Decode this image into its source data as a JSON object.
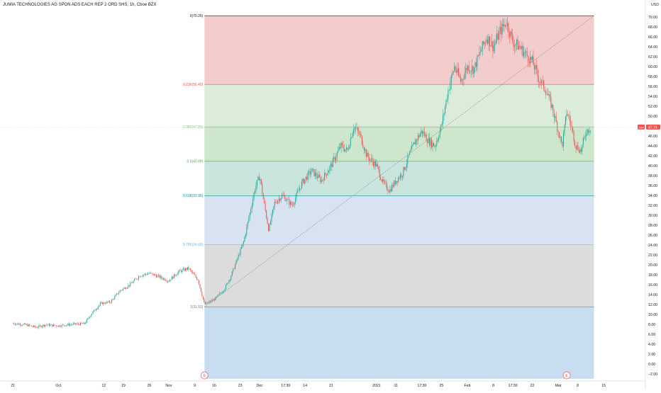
{
  "header": {
    "title": "JUMIA TECHNOLOGIES AG SPON ADS EACH REP 2 ORD SHS, 1h, Cboe BZX"
  },
  "colors": {
    "up": "#26a69a",
    "down": "#ef5350",
    "fib_0_0236": "#f2c7c7",
    "fib_0236_0382": "#d7ead6",
    "fib_0382_05": "#c8e3c6",
    "fib_05_0618": "#c3e2da",
    "fib_0618_0786": "#d3e0ee",
    "fib_0786_1": "#d8d8d8",
    "fib_below_1": "#c3d9ee",
    "last_price_tag": "#ef5350"
  },
  "chart_data": {
    "type": "candlestick",
    "symbol": "JUMIA TECHNOLOGIES AG SPON ADS EACH REP 2 ORD SHS",
    "interval": "1h",
    "exchange": "Cboe BZX",
    "currency": "USD",
    "ylim": [
      -3,
      72
    ],
    "y_ticks": [
      {
        "value": 70,
        "label": "70.00"
      },
      {
        "value": 68,
        "label": "68.00"
      },
      {
        "value": 66,
        "label": "66.00"
      },
      {
        "value": 64,
        "label": "64.00"
      },
      {
        "value": 62,
        "label": "62.00"
      },
      {
        "value": 60,
        "label": "60.00"
      },
      {
        "value": 58,
        "label": "58.00"
      },
      {
        "value": 56,
        "label": "56.00"
      },
      {
        "value": 54,
        "label": "54.00"
      },
      {
        "value": 52,
        "label": "52.00"
      },
      {
        "value": 50,
        "label": "50.00"
      },
      {
        "value": 48,
        "label": "48.00"
      },
      {
        "value": 46,
        "label": "46.00"
      },
      {
        "value": 44,
        "label": "44.00"
      },
      {
        "value": 42,
        "label": "42.00"
      },
      {
        "value": 40,
        "label": "40.00"
      },
      {
        "value": 38,
        "label": "38.00"
      },
      {
        "value": 36,
        "label": "36.00"
      },
      {
        "value": 34,
        "label": "34.00"
      },
      {
        "value": 32,
        "label": "32.00"
      },
      {
        "value": 30,
        "label": "30.00"
      },
      {
        "value": 28,
        "label": "28.00"
      },
      {
        "value": 26,
        "label": "26.00"
      },
      {
        "value": 24,
        "label": "24.00"
      },
      {
        "value": 22,
        "label": "22.00"
      },
      {
        "value": 20,
        "label": "20.00"
      },
      {
        "value": 18,
        "label": "18.00"
      },
      {
        "value": 16,
        "label": "16.00"
      },
      {
        "value": 14,
        "label": "14.00"
      },
      {
        "value": 12,
        "label": "12.00"
      },
      {
        "value": 10,
        "label": "10.00"
      },
      {
        "value": 8,
        "label": "8.00"
      },
      {
        "value": 6,
        "label": "6.00"
      },
      {
        "value": 4,
        "label": "4.00"
      },
      {
        "value": 2,
        "label": "2.00"
      },
      {
        "value": 0,
        "label": "0.00"
      },
      {
        "value": -2,
        "label": "−2.00"
      }
    ],
    "axis_top_labels": [
      "USD"
    ],
    "x_ticks": [
      {
        "value": 0,
        "label": "21"
      },
      {
        "value": 7,
        "label": "Oct"
      },
      {
        "value": 14,
        "label": "12"
      },
      {
        "value": 17,
        "label": "19"
      },
      {
        "value": 21,
        "label": "26"
      },
      {
        "value": 24,
        "label": "Nov"
      },
      {
        "value": 28,
        "label": "9"
      },
      {
        "value": 31,
        "label": "16"
      },
      {
        "value": 35,
        "label": "23"
      },
      {
        "value": 38,
        "label": "Dec"
      },
      {
        "value": 42,
        "label": "17:30"
      },
      {
        "value": 45,
        "label": "14"
      },
      {
        "value": 49,
        "label": "21"
      },
      {
        "value": 56,
        "label": "2021"
      },
      {
        "value": 59,
        "label": "11"
      },
      {
        "value": 63,
        "label": "17:30"
      },
      {
        "value": 66,
        "label": "25"
      },
      {
        "value": 70,
        "label": "Feb"
      },
      {
        "value": 74,
        "label": "8"
      },
      {
        "value": 77,
        "label": "17:30"
      },
      {
        "value": 80,
        "label": "22"
      },
      {
        "value": 84,
        "label": "Mar"
      },
      {
        "value": 87,
        "label": "8"
      },
      {
        "value": 91,
        "label": "15"
      }
    ],
    "xlim": [
      -2,
      96
    ],
    "fib_retracement": {
      "x_start": 29.5,
      "x_end": 89.5,
      "levels": [
        {
          "ratio": "0",
          "price": 70.26,
          "label": "0(70.26)",
          "color": "#131722"
        },
        {
          "ratio": "0.236",
          "price": 56.4,
          "label": "0.236(56.40)",
          "color": "#ef5350"
        },
        {
          "ratio": "0.382",
          "price": 47.83,
          "label": "0.382(47.83)",
          "color": "#81c784"
        },
        {
          "ratio": "0.5",
          "price": 40.89,
          "label": "0.5(40.89)",
          "color": "#4caf50"
        },
        {
          "ratio": "0.618",
          "price": 33.96,
          "label": "0.618(33.96)",
          "color": "#009688"
        },
        {
          "ratio": "0.786",
          "price": 24.09,
          "label": "0.786(24.09)",
          "color": "#64b5f6"
        },
        {
          "ratio": "1",
          "price": 11.52,
          "label": "1(11.52)",
          "color": "#787b86"
        }
      ],
      "trend_line": {
        "from": [
          29.5,
          11.52
        ],
        "to": [
          89.5,
          70.26
        ]
      }
    },
    "price_path": [
      [
        0,
        8.2
      ],
      [
        2,
        7.9
      ],
      [
        3.5,
        7.4
      ],
      [
        5,
        7.9
      ],
      [
        7,
        7.7
      ],
      [
        9,
        8.0
      ],
      [
        11,
        8.1
      ],
      [
        12,
        10.0
      ],
      [
        13.5,
        12.2
      ],
      [
        15,
        12.5
      ],
      [
        16.5,
        14.8
      ],
      [
        18,
        16.0
      ],
      [
        19.5,
        17.8
      ],
      [
        21,
        18.3
      ],
      [
        22.5,
        17.6
      ],
      [
        24,
        16.8
      ],
      [
        25.5,
        18.6
      ],
      [
        27,
        19.3
      ],
      [
        28.5,
        17.0
      ],
      [
        29.5,
        12.0
      ],
      [
        31,
        13.0
      ],
      [
        32.5,
        15.0
      ],
      [
        33.5,
        17.5
      ],
      [
        34.5,
        21.0
      ],
      [
        35.5,
        24.5
      ],
      [
        36,
        27.5
      ],
      [
        36.5,
        30.5
      ],
      [
        37.3,
        35.5
      ],
      [
        38,
        38.0
      ],
      [
        38.6,
        33.0
      ],
      [
        39.4,
        27.0
      ],
      [
        40.3,
        32.5
      ],
      [
        41.5,
        34.0
      ],
      [
        43,
        32.0
      ],
      [
        44.5,
        36.5
      ],
      [
        46,
        39.0
      ],
      [
        47.5,
        37.0
      ],
      [
        49,
        40.0
      ],
      [
        50.5,
        44.0
      ],
      [
        51.5,
        43.0
      ],
      [
        52.5,
        48.0
      ],
      [
        53.5,
        46.0
      ],
      [
        54.5,
        42.0
      ],
      [
        56,
        40.0
      ],
      [
        57,
        36.5
      ],
      [
        58,
        35.0
      ],
      [
        59,
        37.0
      ],
      [
        60,
        38.5
      ],
      [
        61,
        42.0
      ],
      [
        62,
        45.0
      ],
      [
        63,
        47.0
      ],
      [
        64,
        45.0
      ],
      [
        65,
        44.0
      ],
      [
        66,
        48.0
      ],
      [
        67,
        55.0
      ],
      [
        68,
        60.0
      ],
      [
        69,
        57.0
      ],
      [
        70,
        60.0
      ],
      [
        71,
        59.5
      ],
      [
        72,
        63.0
      ],
      [
        73,
        66.0
      ],
      [
        74,
        64.0
      ],
      [
        75,
        67.0
      ],
      [
        76,
        69.0
      ],
      [
        77,
        65.0
      ],
      [
        78,
        64.0
      ],
      [
        79,
        62.5
      ],
      [
        80,
        61.0
      ],
      [
        81,
        57.5
      ],
      [
        82,
        55.5
      ],
      [
        83,
        52.0
      ],
      [
        84,
        47.0
      ],
      [
        84.6,
        44.0
      ],
      [
        85.3,
        51.0
      ],
      [
        86,
        48.0
      ],
      [
        86.7,
        44.0
      ],
      [
        87.5,
        43.0
      ],
      [
        88.3,
        47.0
      ],
      [
        89,
        47.7
      ]
    ],
    "last_price": 47.74,
    "last_price_label": "47.74",
    "price_tag_prefix": "JMA",
    "price_tag_value": "47.74",
    "events": [
      {
        "x": 29.5,
        "label": "E"
      },
      {
        "x": 85.3,
        "label": "E"
      }
    ]
  }
}
